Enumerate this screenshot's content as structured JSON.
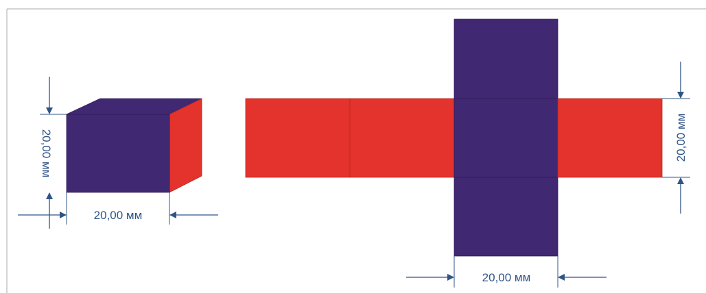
{
  "colors": {
    "face_purple": "#412873",
    "face_red": "#e4332c",
    "dimension_blue": "#2f5486",
    "frame_gray": "#a8a8a8",
    "background": "#ffffff"
  },
  "cube": {
    "height_label": "20,00 мм",
    "width_label": "20,00 мм"
  },
  "net": {
    "height_label": "20,00 мм",
    "width_label": "20,00 мм"
  }
}
